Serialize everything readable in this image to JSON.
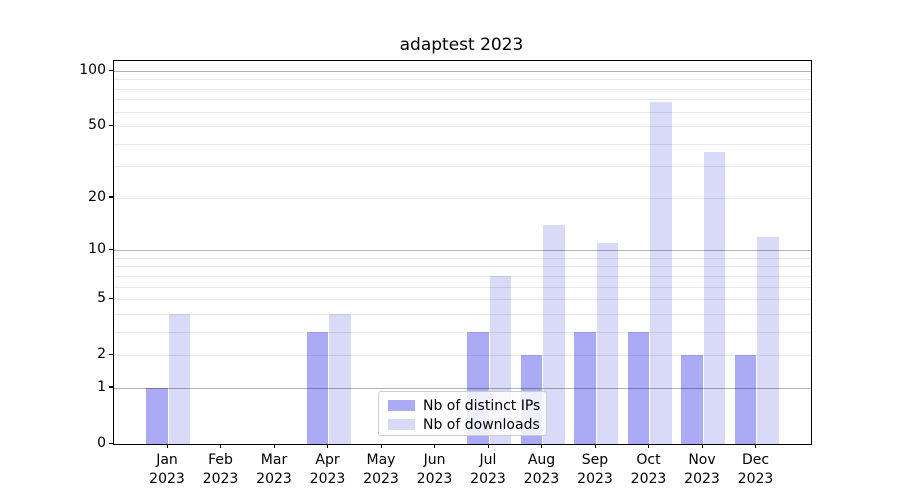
{
  "chart_data": {
    "type": "bar",
    "title": "adaptest 2023",
    "categories": [
      "Jan",
      "Feb",
      "Mar",
      "Apr",
      "May",
      "Jun",
      "Jul",
      "Aug",
      "Sep",
      "Oct",
      "Nov",
      "Dec"
    ],
    "year": "2023",
    "series": [
      {
        "name": "Nb of distinct IPs",
        "color": "#aaaaf5",
        "values": [
          1,
          0,
          0,
          3,
          0,
          0,
          3,
          2,
          3,
          3,
          2,
          2
        ]
      },
      {
        "name": "Nb of downloads",
        "color": "#d9d9f8",
        "values": [
          4,
          0,
          0,
          4,
          0,
          0,
          7,
          14,
          11,
          68,
          36,
          12
        ]
      }
    ],
    "yscale": "log1p",
    "ylim": [
      0,
      114
    ],
    "ytick_values": [
      0,
      1,
      2,
      5,
      10,
      20,
      50,
      100
    ],
    "ytick_labels": [
      "0",
      "1",
      "2",
      "5",
      "10",
      "20",
      "50",
      "100"
    ],
    "major_gridline_values": [
      1,
      10,
      100
    ],
    "minor_gridline_values": [
      2,
      3,
      4,
      5,
      6,
      7,
      8,
      9,
      20,
      30,
      40,
      50,
      60,
      70,
      80,
      90
    ],
    "grid_major_color": "rgba(0,0,0,0.30)",
    "grid_minor_color": "rgba(0,0,0,0.09)",
    "legend_position": "lower center",
    "xlabel": "",
    "ylabel": ""
  }
}
